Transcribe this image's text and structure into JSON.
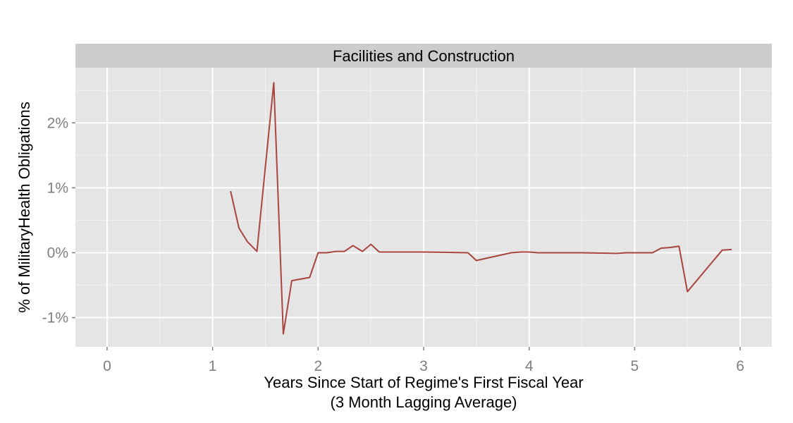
{
  "chart_data": {
    "type": "line",
    "facet_title": "Facilities and Construction",
    "xlabel": "Years Since Start of Regime's First Fiscal Year",
    "xlabel_line2": "(3 Month Lagging Average)",
    "ylabel": "% of MilitaryHealth Obligations",
    "xlim": [
      -0.3,
      6.3
    ],
    "ylim": [
      -1.45,
      2.85
    ],
    "x_ticks": [
      0,
      1,
      2,
      3,
      4,
      5,
      6
    ],
    "x_tick_labels": [
      "0",
      "1",
      "2",
      "3",
      "4",
      "5",
      "6"
    ],
    "y_ticks": [
      -1,
      0,
      1,
      2
    ],
    "y_tick_labels": [
      "-1%",
      "0%",
      "1%",
      "2%"
    ],
    "grid": true,
    "colors": {
      "panel_bg": "#e5e5e5",
      "strip_bg": "#cccccc",
      "grid_major": "#ffffff",
      "grid_minor": "#f2f2f2",
      "line": "#a9443e"
    },
    "series": [
      {
        "x": [
          1.17,
          1.25,
          1.33,
          1.42,
          1.58,
          1.67,
          1.75,
          1.92,
          2.0,
          2.08,
          2.17,
          2.25,
          2.33,
          2.42,
          2.5,
          2.58,
          2.67,
          2.75,
          2.83,
          2.92,
          3.0,
          3.42,
          3.5,
          3.83,
          3.92,
          4.0,
          4.08,
          4.5,
          4.83,
          4.92,
          5.0,
          5.17,
          5.25,
          5.33,
          5.42,
          5.5,
          5.83,
          5.92
        ],
        "y": [
          0.95,
          0.38,
          0.17,
          0.02,
          2.62,
          -1.25,
          -0.43,
          -0.38,
          0.0,
          0.0,
          0.02,
          0.02,
          0.11,
          0.02,
          0.13,
          0.01,
          0.01,
          0.01,
          0.01,
          0.01,
          0.01,
          0.0,
          -0.12,
          0.0,
          0.01,
          0.01,
          0.0,
          0.0,
          -0.01,
          0.0,
          0.0,
          0.0,
          0.07,
          0.08,
          0.1,
          -0.6,
          0.04,
          0.05
        ]
      }
    ]
  }
}
